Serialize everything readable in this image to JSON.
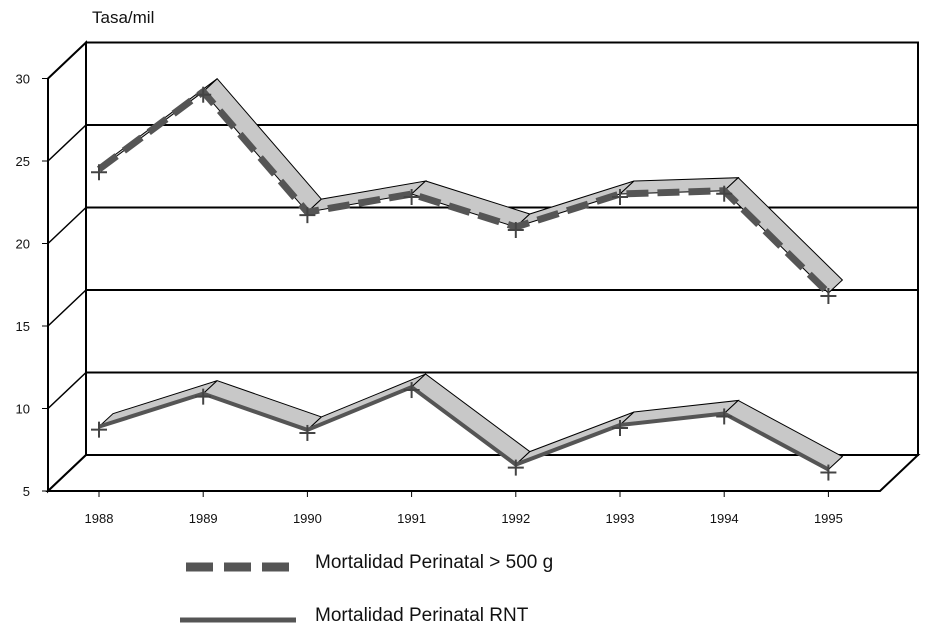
{
  "chart_data": {
    "type": "line",
    "ylabel": "Tasa/mil",
    "categories": [
      "1988",
      "1989",
      "1990",
      "1991",
      "1992",
      "1993",
      "1994",
      "1995"
    ],
    "y_ticks": [
      "30",
      "25",
      "20",
      "15",
      "10",
      "5"
    ],
    "ylim": [
      5,
      30
    ],
    "grid": true,
    "legend_position": "bottom",
    "series": [
      {
        "name": "Mortalidad Perinatal > 500 g",
        "values": [
          24.5,
          29.2,
          21.9,
          23.0,
          21.0,
          23.0,
          23.2,
          17.0
        ],
        "style": "dashed",
        "color": "#555555"
      },
      {
        "name": "Mortalidad Perinatal RNT",
        "values": [
          8.9,
          10.9,
          8.7,
          11.3,
          6.6,
          9.0,
          9.7,
          6.3
        ],
        "style": "solid",
        "color": "#555555"
      }
    ],
    "ribbon_color": "#c8c8c8"
  }
}
